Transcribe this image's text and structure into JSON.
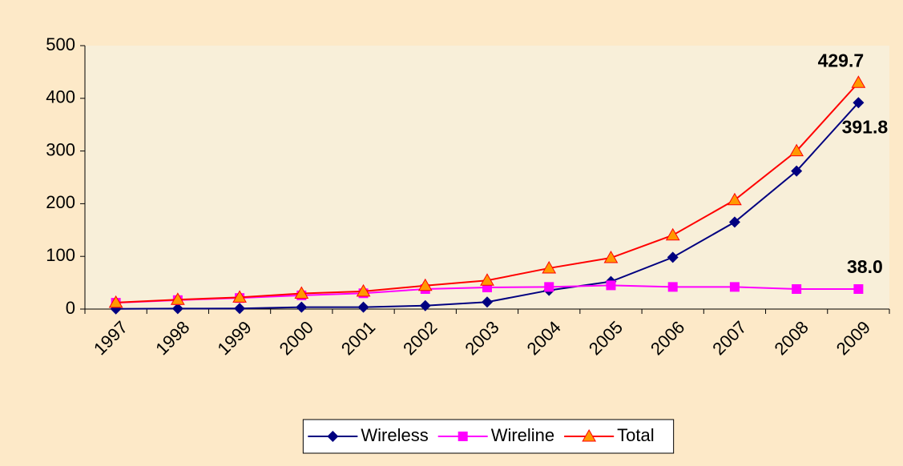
{
  "chart_data": {
    "type": "line",
    "categories": [
      "1997",
      "1998",
      "1999",
      "2000",
      "2001",
      "2002",
      "2003",
      "2004",
      "2005",
      "2006",
      "2007",
      "2008",
      "2009"
    ],
    "series": [
      {
        "name": "Wireless",
        "color": "#000080",
        "marker": "diamond",
        "values": [
          0.3,
          0.9,
          1.2,
          3.6,
          3.6,
          6.5,
          13.3,
          35.6,
          52.2,
          98.2,
          165,
          262,
          391.8
        ],
        "value_labels": [
          null,
          null,
          null,
          null,
          null,
          null,
          null,
          null,
          null,
          null,
          null,
          null,
          "391.8"
        ]
      },
      {
        "name": "Wireline",
        "color": "#ff00ff",
        "marker": "square",
        "values": [
          12,
          17,
          21,
          26,
          30,
          38,
          41,
          42,
          45,
          42,
          42,
          38,
          38.0
        ],
        "value_labels": [
          null,
          null,
          null,
          null,
          null,
          null,
          null,
          null,
          null,
          null,
          null,
          null,
          "38.0"
        ]
      },
      {
        "name": "Total",
        "color": "#ff0000",
        "marker": "triangle",
        "marker_color": "#ff9900",
        "values": [
          12.3,
          17.9,
          22.2,
          29.6,
          33.6,
          44.5,
          54.3,
          77.6,
          97.2,
          140.2,
          207,
          300,
          429.7
        ],
        "value_labels": [
          null,
          null,
          null,
          null,
          null,
          null,
          null,
          null,
          null,
          null,
          null,
          null,
          "429.7"
        ]
      }
    ],
    "ylim": [
      0,
      500
    ],
    "yticks": [
      0,
      100,
      200,
      300,
      400,
      500
    ],
    "grid": false,
    "legend": "bottom"
  }
}
